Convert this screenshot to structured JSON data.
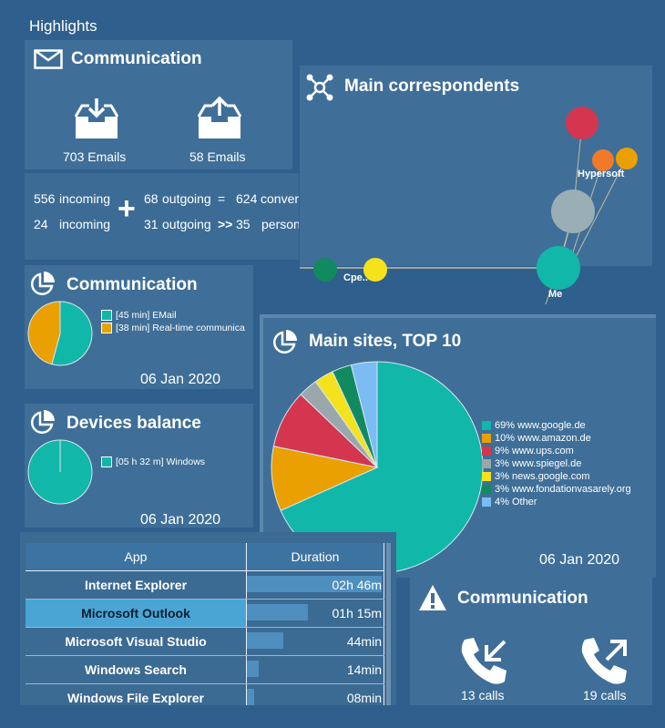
{
  "page_title": "Highlights",
  "emails": {
    "title": "Communication",
    "received_label": "703 Emails",
    "sent_label": "58 Emails"
  },
  "summary": {
    "row1": {
      "incoming_n": "556",
      "incoming_lbl": "incoming",
      "outgoing_n": "68",
      "outgoing_lbl": "outgoing",
      "op": "=",
      "total_n": "624",
      "total_lbl": "conversations"
    },
    "row2": {
      "incoming_n": "24",
      "incoming_lbl": "incoming",
      "outgoing_n": "31",
      "outgoing_lbl": "outgoing",
      "op": ">>",
      "total_n": "35",
      "total_lbl": "persons in touch"
    },
    "plus": "+"
  },
  "correspondents": {
    "title": "Main correspondents",
    "labels": [
      "Hypersoft",
      "Cpe..",
      "Me"
    ]
  },
  "comm_time": {
    "title": "Communication",
    "date": "06 Jan 2020",
    "legend": [
      {
        "label": "[45 min] EMail",
        "color": "#11b7a8"
      },
      {
        "label": "[38 min] Real-time communica",
        "color": "#e9a000"
      }
    ]
  },
  "devices": {
    "title": "Devices balance",
    "date": "06 Jan 2020",
    "legend": [
      {
        "label": "[05 h 32 m] Windows",
        "color": "#11b7a8"
      }
    ]
  },
  "sites": {
    "title": "Main sites, TOP 10",
    "date": "06 Jan 2020",
    "legend": [
      {
        "label": "69% www.google.de",
        "color": "#11b7a8"
      },
      {
        "label": "10% www.amazon.de",
        "color": "#e9a000"
      },
      {
        "label": "9% www.ups.com",
        "color": "#d43650"
      },
      {
        "label": "3% www.spiegel.de",
        "color": "#9aa8ac"
      },
      {
        "label": "3% news.google.com",
        "color": "#f5e21c"
      },
      {
        "label": "3% www.fondationvasarely.org",
        "color": "#118a5f"
      },
      {
        "label": "4% Other",
        "color": "#7cbcf5"
      }
    ]
  },
  "apps": {
    "col_app": "App",
    "col_duration": "Duration",
    "rows": [
      {
        "app": "Internet Explorer",
        "duration": "02h 46m",
        "fill": 1.0
      },
      {
        "app": "Microsoft Outlook",
        "duration": "01h 15m",
        "fill": 0.45
      },
      {
        "app": "Microsoft Visual Studio",
        "duration": "44min",
        "fill": 0.27
      },
      {
        "app": "Windows Search",
        "duration": "14min",
        "fill": 0.09
      },
      {
        "app": "Windows File Explorer",
        "duration": "08min",
        "fill": 0.05
      }
    ]
  },
  "calls": {
    "title": "Communication",
    "incoming_label": "13 calls",
    "outgoing_label": "19 calls"
  },
  "chart_data": [
    {
      "type": "pie",
      "title": "Communication",
      "categories": [
        "[45 min] EMail",
        "[38 min] Real-time communica"
      ],
      "values": [
        45,
        38
      ]
    },
    {
      "type": "pie",
      "title": "Devices balance",
      "categories": [
        "[05 h 32 m] Windows"
      ],
      "values": [
        332
      ]
    },
    {
      "type": "pie",
      "title": "Main sites, TOP 10",
      "categories": [
        "www.google.de",
        "www.amazon.de",
        "www.ups.com",
        "www.spiegel.de",
        "news.google.com",
        "www.fondationvasarely.org",
        "Other"
      ],
      "values": [
        69,
        10,
        9,
        3,
        3,
        3,
        4
      ]
    }
  ]
}
